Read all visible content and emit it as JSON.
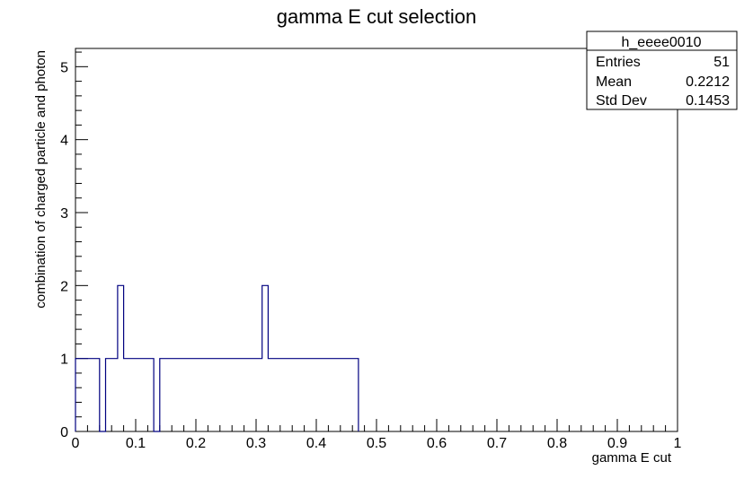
{
  "chart_data": {
    "type": "histogram",
    "title": "gamma E cut selection",
    "xlabel": "gamma E cut",
    "ylabel": "combination of charged particle and photon",
    "xlim": [
      0,
      1
    ],
    "ylim": [
      0,
      5.25
    ],
    "grid": false,
    "bin_width": 0.01,
    "bins": [
      {
        "x0": 0.0,
        "x1": 0.04,
        "y": 1
      },
      {
        "x0": 0.04,
        "x1": 0.05,
        "y": 0
      },
      {
        "x0": 0.05,
        "x1": 0.07,
        "y": 1
      },
      {
        "x0": 0.07,
        "x1": 0.08,
        "y": 2
      },
      {
        "x0": 0.08,
        "x1": 0.13,
        "y": 1
      },
      {
        "x0": 0.13,
        "x1": 0.14,
        "y": 0
      },
      {
        "x0": 0.14,
        "x1": 0.31,
        "y": 1
      },
      {
        "x0": 0.31,
        "x1": 0.32,
        "y": 2
      },
      {
        "x0": 0.32,
        "x1": 0.47,
        "y": 1
      }
    ],
    "x_ticks": [
      "0",
      "0.1",
      "0.2",
      "0.3",
      "0.4",
      "0.5",
      "0.6",
      "0.7",
      "0.8",
      "0.9",
      "1"
    ],
    "x_tick_values": [
      0,
      0.1,
      0.2,
      0.3,
      0.4,
      0.5,
      0.6,
      0.7,
      0.8,
      0.9,
      1
    ],
    "y_ticks": [
      "0",
      "1",
      "2",
      "3",
      "4",
      "5"
    ],
    "y_tick_values": [
      0,
      1,
      2,
      3,
      4,
      5
    ],
    "line_color": "#000080",
    "stats_box": {
      "name": "h_eeee0010",
      "rows": [
        {
          "label": "Entries",
          "value": "51"
        },
        {
          "label": "Mean",
          "value": "0.2212"
        },
        {
          "label": "Std Dev",
          "value": "0.1453"
        }
      ]
    }
  }
}
